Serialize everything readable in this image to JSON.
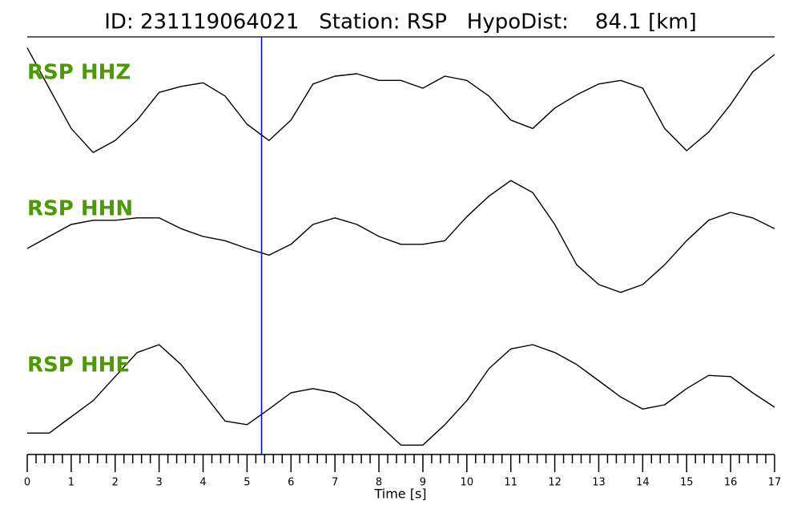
{
  "chart_data": {
    "type": "line",
    "title": "ID: 231119064021   Station: RSP   HypoDist:    84.1 [km]",
    "x_label": "Time [s]",
    "xlim": [
      0,
      17
    ],
    "xticks": [
      0,
      1,
      2,
      3,
      4,
      5,
      6,
      7,
      8,
      9,
      10,
      11,
      12,
      13,
      14,
      15,
      16,
      17
    ],
    "xminor_ticks": [
      0.2,
      0.4,
      0.6,
      0.8,
      1.2,
      1.4,
      1.6,
      1.8,
      2.2,
      2.4,
      2.6,
      2.8,
      3.2,
      3.4,
      3.6,
      3.8,
      4.2,
      4.4,
      4.6,
      4.8,
      5.2,
      5.4,
      5.6,
      5.8,
      6.2,
      6.4,
      6.6,
      6.8,
      7.2,
      7.4,
      7.6,
      7.8,
      8.2,
      8.4,
      8.6,
      8.8,
      9.2,
      9.4,
      9.6,
      9.8,
      10.2,
      10.4,
      10.6,
      10.8,
      11.2,
      11.4,
      11.6,
      11.8,
      12.2,
      12.4,
      12.6,
      12.8,
      13.2,
      13.4,
      13.6,
      13.8,
      14.2,
      14.4,
      14.6,
      14.8,
      15.2,
      15.4,
      15.6,
      15.8,
      16.2,
      16.4,
      16.6,
      16.8
    ],
    "ylim": [
      -1,
      1
    ],
    "label_color": "#4c9a00",
    "pick": {
      "x": 5.33,
      "color": "#0000ff"
    },
    "x": [
      0,
      0.5,
      1,
      1.5,
      2,
      2.5,
      3,
      3.5,
      4,
      4.5,
      5,
      5.5,
      6,
      6.5,
      7,
      7.5,
      8,
      8.5,
      9,
      9.5,
      10,
      10.5,
      11,
      11.5,
      12,
      12.5,
      13,
      13.5,
      14,
      14.5,
      15,
      15.5,
      16,
      16.5,
      17
    ],
    "series": [
      {
        "name": "RSP HHZ",
        "color": "#000000",
        "values": [
          0.87,
          0.2,
          -0.47,
          -0.87,
          -0.67,
          -0.33,
          0.13,
          0.23,
          0.29,
          0.07,
          -0.4,
          -0.67,
          -0.33,
          0.27,
          0.4,
          0.44,
          0.33,
          0.33,
          0.2,
          0.4,
          0.33,
          0.07,
          -0.33,
          -0.47,
          -0.13,
          0.09,
          0.27,
          0.33,
          0.2,
          -0.47,
          -0.84,
          -0.53,
          -0.07,
          0.47,
          0.76
        ]
      },
      {
        "name": "RSP HHN",
        "color": "#000000",
        "values": [
          -0.2,
          0,
          0.2,
          0.27,
          0.27,
          0.31,
          0.31,
          0.13,
          0,
          -0.07,
          -0.2,
          -0.31,
          -0.13,
          0.2,
          0.31,
          0.2,
          0,
          -0.13,
          -0.13,
          -0.07,
          0.33,
          0.67,
          0.93,
          0.73,
          0.2,
          -0.47,
          -0.8,
          -0.93,
          -0.8,
          -0.47,
          -0.07,
          0.27,
          0.4,
          0.31,
          0.13
        ]
      },
      {
        "name": "RSP HHE",
        "color": "#000000",
        "values": [
          -0.67,
          -0.67,
          -0.4,
          -0.13,
          0.27,
          0.67,
          0.8,
          0.47,
          0,
          -0.47,
          -0.53,
          -0.27,
          0,
          0.07,
          0,
          -0.2,
          -0.53,
          -0.87,
          -0.87,
          -0.53,
          -0.13,
          0.4,
          0.73,
          0.8,
          0.67,
          0.47,
          0.2,
          -0.07,
          -0.27,
          -0.2,
          0.07,
          0.29,
          0.27,
          0,
          -0.24
        ]
      }
    ]
  }
}
